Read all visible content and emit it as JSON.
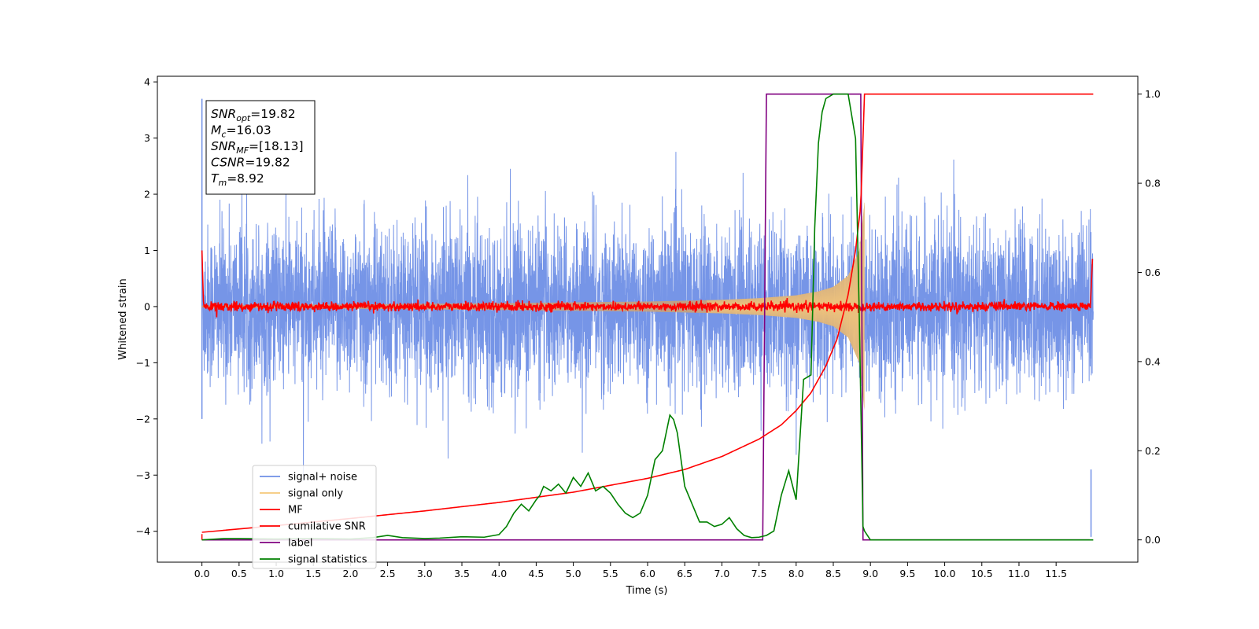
{
  "chart_data": {
    "type": "line",
    "xlabel": "Time (s)",
    "ylabel_left": "Whitened strain",
    "ylabel_right": "",
    "xlim": [
      -0.6,
      12.6
    ],
    "ylim_left": [
      -4.55,
      4.1
    ],
    "ylim_right": [
      -0.05,
      1.04
    ],
    "x_ticks": [
      0.0,
      0.5,
      1.0,
      1.5,
      2.0,
      2.5,
      3.0,
      3.5,
      4.0,
      4.5,
      5.0,
      5.5,
      6.0,
      6.5,
      7.0,
      7.5,
      8.0,
      8.5,
      9.0,
      9.5,
      10.0,
      10.5,
      11.0,
      11.5
    ],
    "x_tick_labels": [
      "0.0",
      "0.5",
      "1.0",
      "1.5",
      "2.0",
      "2.5",
      "3.0",
      "3.5",
      "4.0",
      "4.5",
      "5.0",
      "5.5",
      "6.0",
      "6.5",
      "7.0",
      "7.5",
      "8.0",
      "8.5",
      "9.0",
      "9.5",
      "10.0",
      "10.5",
      "11.0",
      "11.5"
    ],
    "y_left_ticks": [
      -4,
      -3,
      -2,
      -1,
      0,
      1,
      2,
      3,
      4
    ],
    "y_left_tick_labels": [
      "−4",
      "−3",
      "−2",
      "−1",
      "0",
      "1",
      "2",
      "3",
      "4"
    ],
    "y_right_ticks": [
      0.0,
      0.2,
      0.4,
      0.6,
      0.8,
      1.0
    ],
    "y_right_tick_labels": [
      "0.0",
      "0.2",
      "0.4",
      "0.6",
      "0.8",
      "1.0"
    ],
    "grid": false,
    "legend_position": "lower-left",
    "info_box": {
      "position": "top-left",
      "lines": [
        {
          "main": "SNR",
          "sub": "opt",
          "value": "=19.82"
        },
        {
          "main": "M",
          "sub": "c",
          "value": "=16.03"
        },
        {
          "main": "SNR",
          "sub": "MF",
          "value": "=[18.13]"
        },
        {
          "main": "CSNR",
          "sub": "",
          "value": "=19.82"
        },
        {
          "main": "T",
          "sub": "m",
          "value": "=8.92"
        }
      ]
    },
    "series": [
      {
        "name": "signal+ noise",
        "axis": "left",
        "color": "#6f8fe6",
        "style": "noise",
        "x_range": [
          0.0,
          12.0
        ],
        "sigma": 0.72
      },
      {
        "name": "signal only",
        "axis": "left",
        "color": "#f5c87a",
        "fill_color": "#c9a27a",
        "style": "chirp",
        "envelope_x": [
          0.0,
          2.0,
          4.0,
          6.0,
          7.0,
          7.5,
          8.0,
          8.3,
          8.5,
          8.7,
          8.85,
          8.92
        ],
        "envelope_y": [
          0.02,
          0.04,
          0.06,
          0.09,
          0.12,
          0.15,
          0.2,
          0.27,
          0.35,
          0.55,
          1.0,
          1.85
        ]
      },
      {
        "name": "MF",
        "axis": "left",
        "color": "#ff0000",
        "style": "mf",
        "x_range": [
          0.0,
          12.0
        ],
        "sigma": 0.04
      },
      {
        "name": "cumilative SNR",
        "axis": "right",
        "color": "#ff0000",
        "style": "line",
        "x": [
          0.0,
          1.0,
          2.0,
          3.0,
          4.0,
          5.0,
          6.0,
          6.5,
          7.0,
          7.5,
          7.8,
          8.0,
          8.2,
          8.4,
          8.55,
          8.7,
          8.8,
          8.87,
          8.92,
          12.0
        ],
        "y": [
          0.017,
          0.032,
          0.048,
          0.065,
          0.084,
          0.107,
          0.138,
          0.158,
          0.187,
          0.226,
          0.258,
          0.29,
          0.33,
          0.39,
          0.45,
          0.55,
          0.65,
          0.75,
          1.0,
          1.0
        ]
      },
      {
        "name": "label",
        "axis": "right",
        "color": "#800080",
        "style": "step",
        "x": [
          0.0,
          7.55,
          7.6,
          8.87,
          8.9,
          11.95
        ],
        "y": [
          0.0,
          0.0,
          1.0,
          1.0,
          0.0,
          0.0
        ]
      },
      {
        "name": "signal statistics",
        "axis": "right",
        "color": "#008000",
        "style": "line",
        "x": [
          0.0,
          0.2,
          0.3,
          0.5,
          1.0,
          1.5,
          2.0,
          2.3,
          2.5,
          2.7,
          3.0,
          3.2,
          3.5,
          3.8,
          4.0,
          4.1,
          4.2,
          4.3,
          4.4,
          4.5,
          4.55,
          4.6,
          4.7,
          4.8,
          4.9,
          5.0,
          5.1,
          5.2,
          5.3,
          5.4,
          5.5,
          5.6,
          5.7,
          5.8,
          5.9,
          6.0,
          6.1,
          6.2,
          6.3,
          6.35,
          6.4,
          6.5,
          6.6,
          6.7,
          6.8,
          6.9,
          7.0,
          7.1,
          7.2,
          7.3,
          7.4,
          7.5,
          7.6,
          7.7,
          7.8,
          7.9,
          8.0,
          8.1,
          8.2,
          8.25,
          8.3,
          8.35,
          8.4,
          8.5,
          8.6,
          8.7,
          8.8,
          8.85,
          8.9,
          8.92,
          9.0,
          12.0
        ],
        "y": [
          0.0,
          0.002,
          0.003,
          0.003,
          0.002,
          0.003,
          0.002,
          0.005,
          0.01,
          0.005,
          0.003,
          0.004,
          0.007,
          0.006,
          0.012,
          0.03,
          0.06,
          0.08,
          0.065,
          0.09,
          0.1,
          0.12,
          0.11,
          0.125,
          0.105,
          0.14,
          0.12,
          0.15,
          0.11,
          0.12,
          0.105,
          0.08,
          0.06,
          0.05,
          0.06,
          0.1,
          0.18,
          0.2,
          0.28,
          0.27,
          0.24,
          0.12,
          0.08,
          0.04,
          0.04,
          0.03,
          0.035,
          0.05,
          0.025,
          0.01,
          0.005,
          0.006,
          0.01,
          0.02,
          0.1,
          0.155,
          0.09,
          0.36,
          0.37,
          0.7,
          0.89,
          0.96,
          0.99,
          1.0,
          1.0,
          1.0,
          0.9,
          0.5,
          0.03,
          0.02,
          0.0,
          0.0
        ]
      }
    ]
  }
}
